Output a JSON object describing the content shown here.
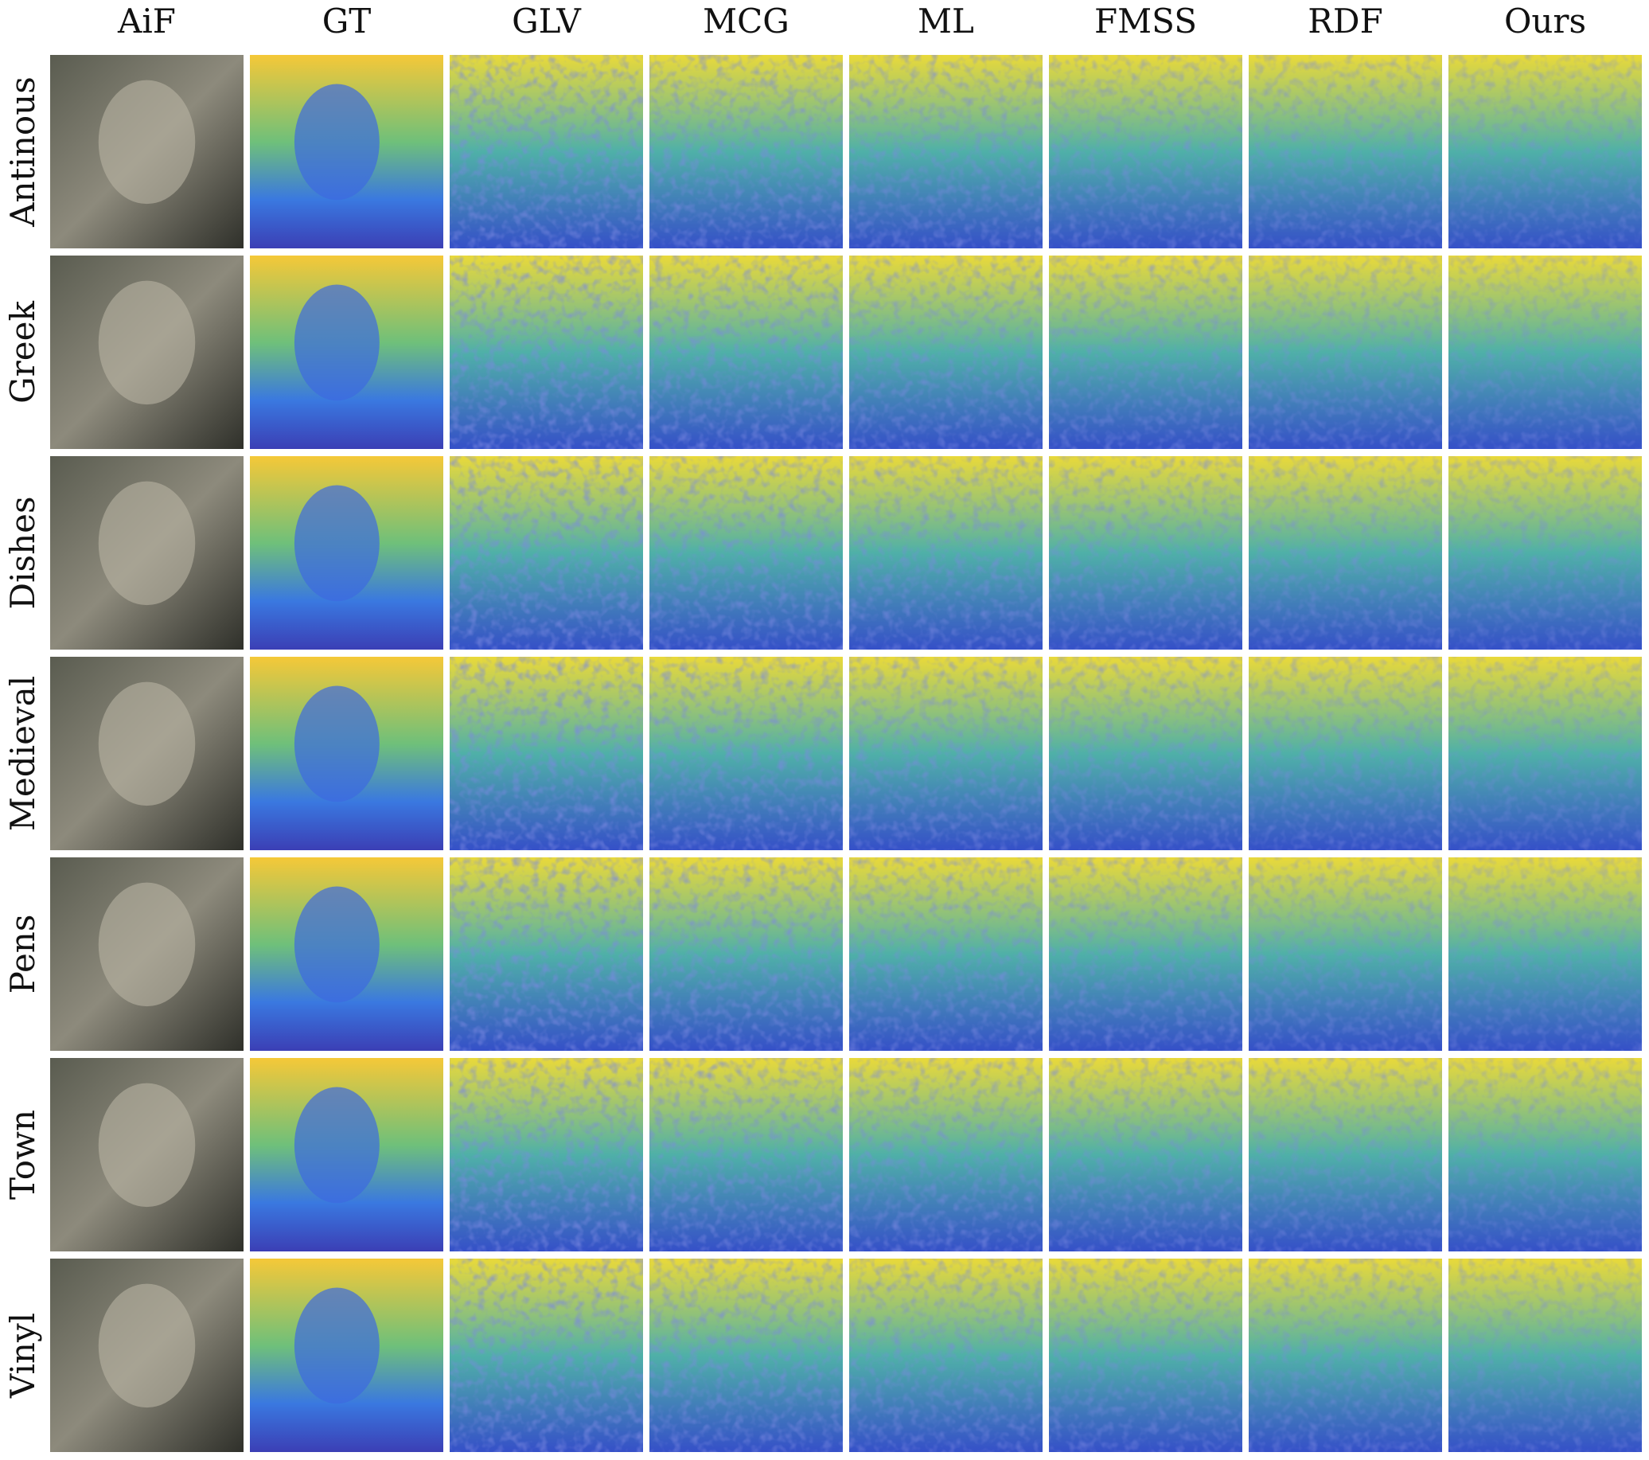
{
  "columns": [
    "AiF",
    "GT",
    "GLV",
    "MCG",
    "ML",
    "FMSS",
    "RDF",
    "Ours"
  ],
  "rows": [
    "Antinous",
    "Greek",
    "Dishes",
    "Medieval",
    "Pens",
    "Town",
    "Vinyl"
  ]
}
